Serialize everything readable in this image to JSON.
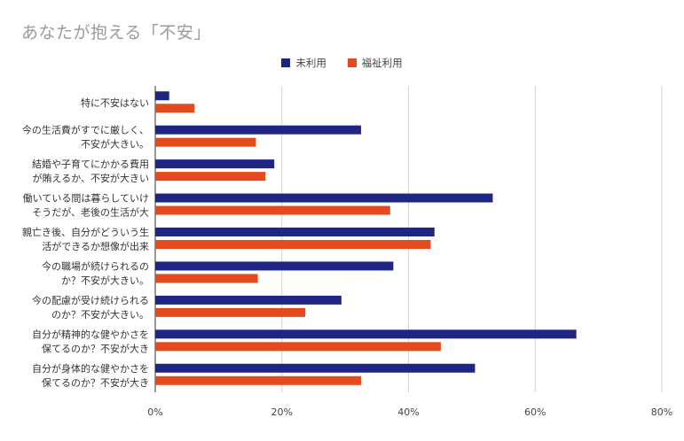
{
  "chart_data": {
    "type": "bar",
    "orientation": "horizontal",
    "title": "あなたが抱える「不安」",
    "categories": [
      [
        "特に不安はない"
      ],
      [
        "今の生活費がすでに厳しく、",
        "不安が大きい。"
      ],
      [
        "結婚や子育てにかかる費用",
        "が賄えるか、不安が大きい"
      ],
      [
        "働いている間は暮らしていけ",
        "そうだが、老後の生活が大"
      ],
      [
        "親亡き後、自分がどういう生",
        "活ができるか想像が出来"
      ],
      [
        "今の職場が続けられるの",
        "か？不安が大きい。"
      ],
      [
        "今の配慮が受け続けられる",
        "のか？不安が大きい。"
      ],
      [
        "自分が精神的な健やかさを",
        "保てるのか？不安が大き"
      ],
      [
        "自分が身体的な健やかさを",
        "保てるのか？不安が大き"
      ]
    ],
    "series": [
      {
        "name": "未利用",
        "color": "#1f2583",
        "values": [
          2.2,
          32.5,
          18.8,
          53.3,
          44.1,
          37.6,
          29.4,
          66.5,
          50.5
        ]
      },
      {
        "name": "福祉利用",
        "color": "#e54a1e",
        "values": [
          6.2,
          15.9,
          17.4,
          37.1,
          43.5,
          16.2,
          23.7,
          45.1,
          32.5
        ]
      }
    ],
    "xlim": [
      0,
      80
    ],
    "xticks": [
      "0%",
      "20%",
      "40%",
      "60%",
      "80%"
    ],
    "grid": true,
    "legend_position": "top"
  }
}
